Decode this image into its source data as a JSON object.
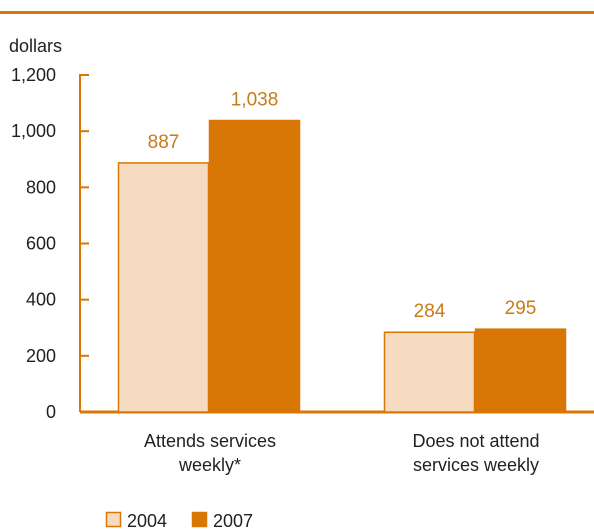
{
  "chart_data": {
    "type": "bar",
    "ylabel": "dollars",
    "ylim": [
      0,
      1200
    ],
    "yticks": [
      "0",
      "200",
      "400",
      "600",
      "800",
      "1,000",
      "1,200"
    ],
    "ytick_values": [
      0,
      200,
      400,
      600,
      800,
      1000,
      1200
    ],
    "categories": [
      [
        "Attends services",
        "weekly*"
      ],
      [
        "Does not attend",
        "services weekly"
      ]
    ],
    "series": [
      {
        "name": "2004",
        "values": [
          887,
          284
        ],
        "labels": [
          "887",
          "284"
        ],
        "color": "#f5dcc0",
        "stroke": "#d97706"
      },
      {
        "name": "2007",
        "values": [
          1038,
          295
        ],
        "labels": [
          "1,038",
          "295"
        ],
        "color": "#d97706",
        "stroke": "#d97706"
      }
    ],
    "colors": {
      "accent": "#d97706",
      "axis": "#d97706",
      "text": "#231f20",
      "label": "#c97a1a"
    },
    "legend": "bottom-left",
    "grid": false
  }
}
